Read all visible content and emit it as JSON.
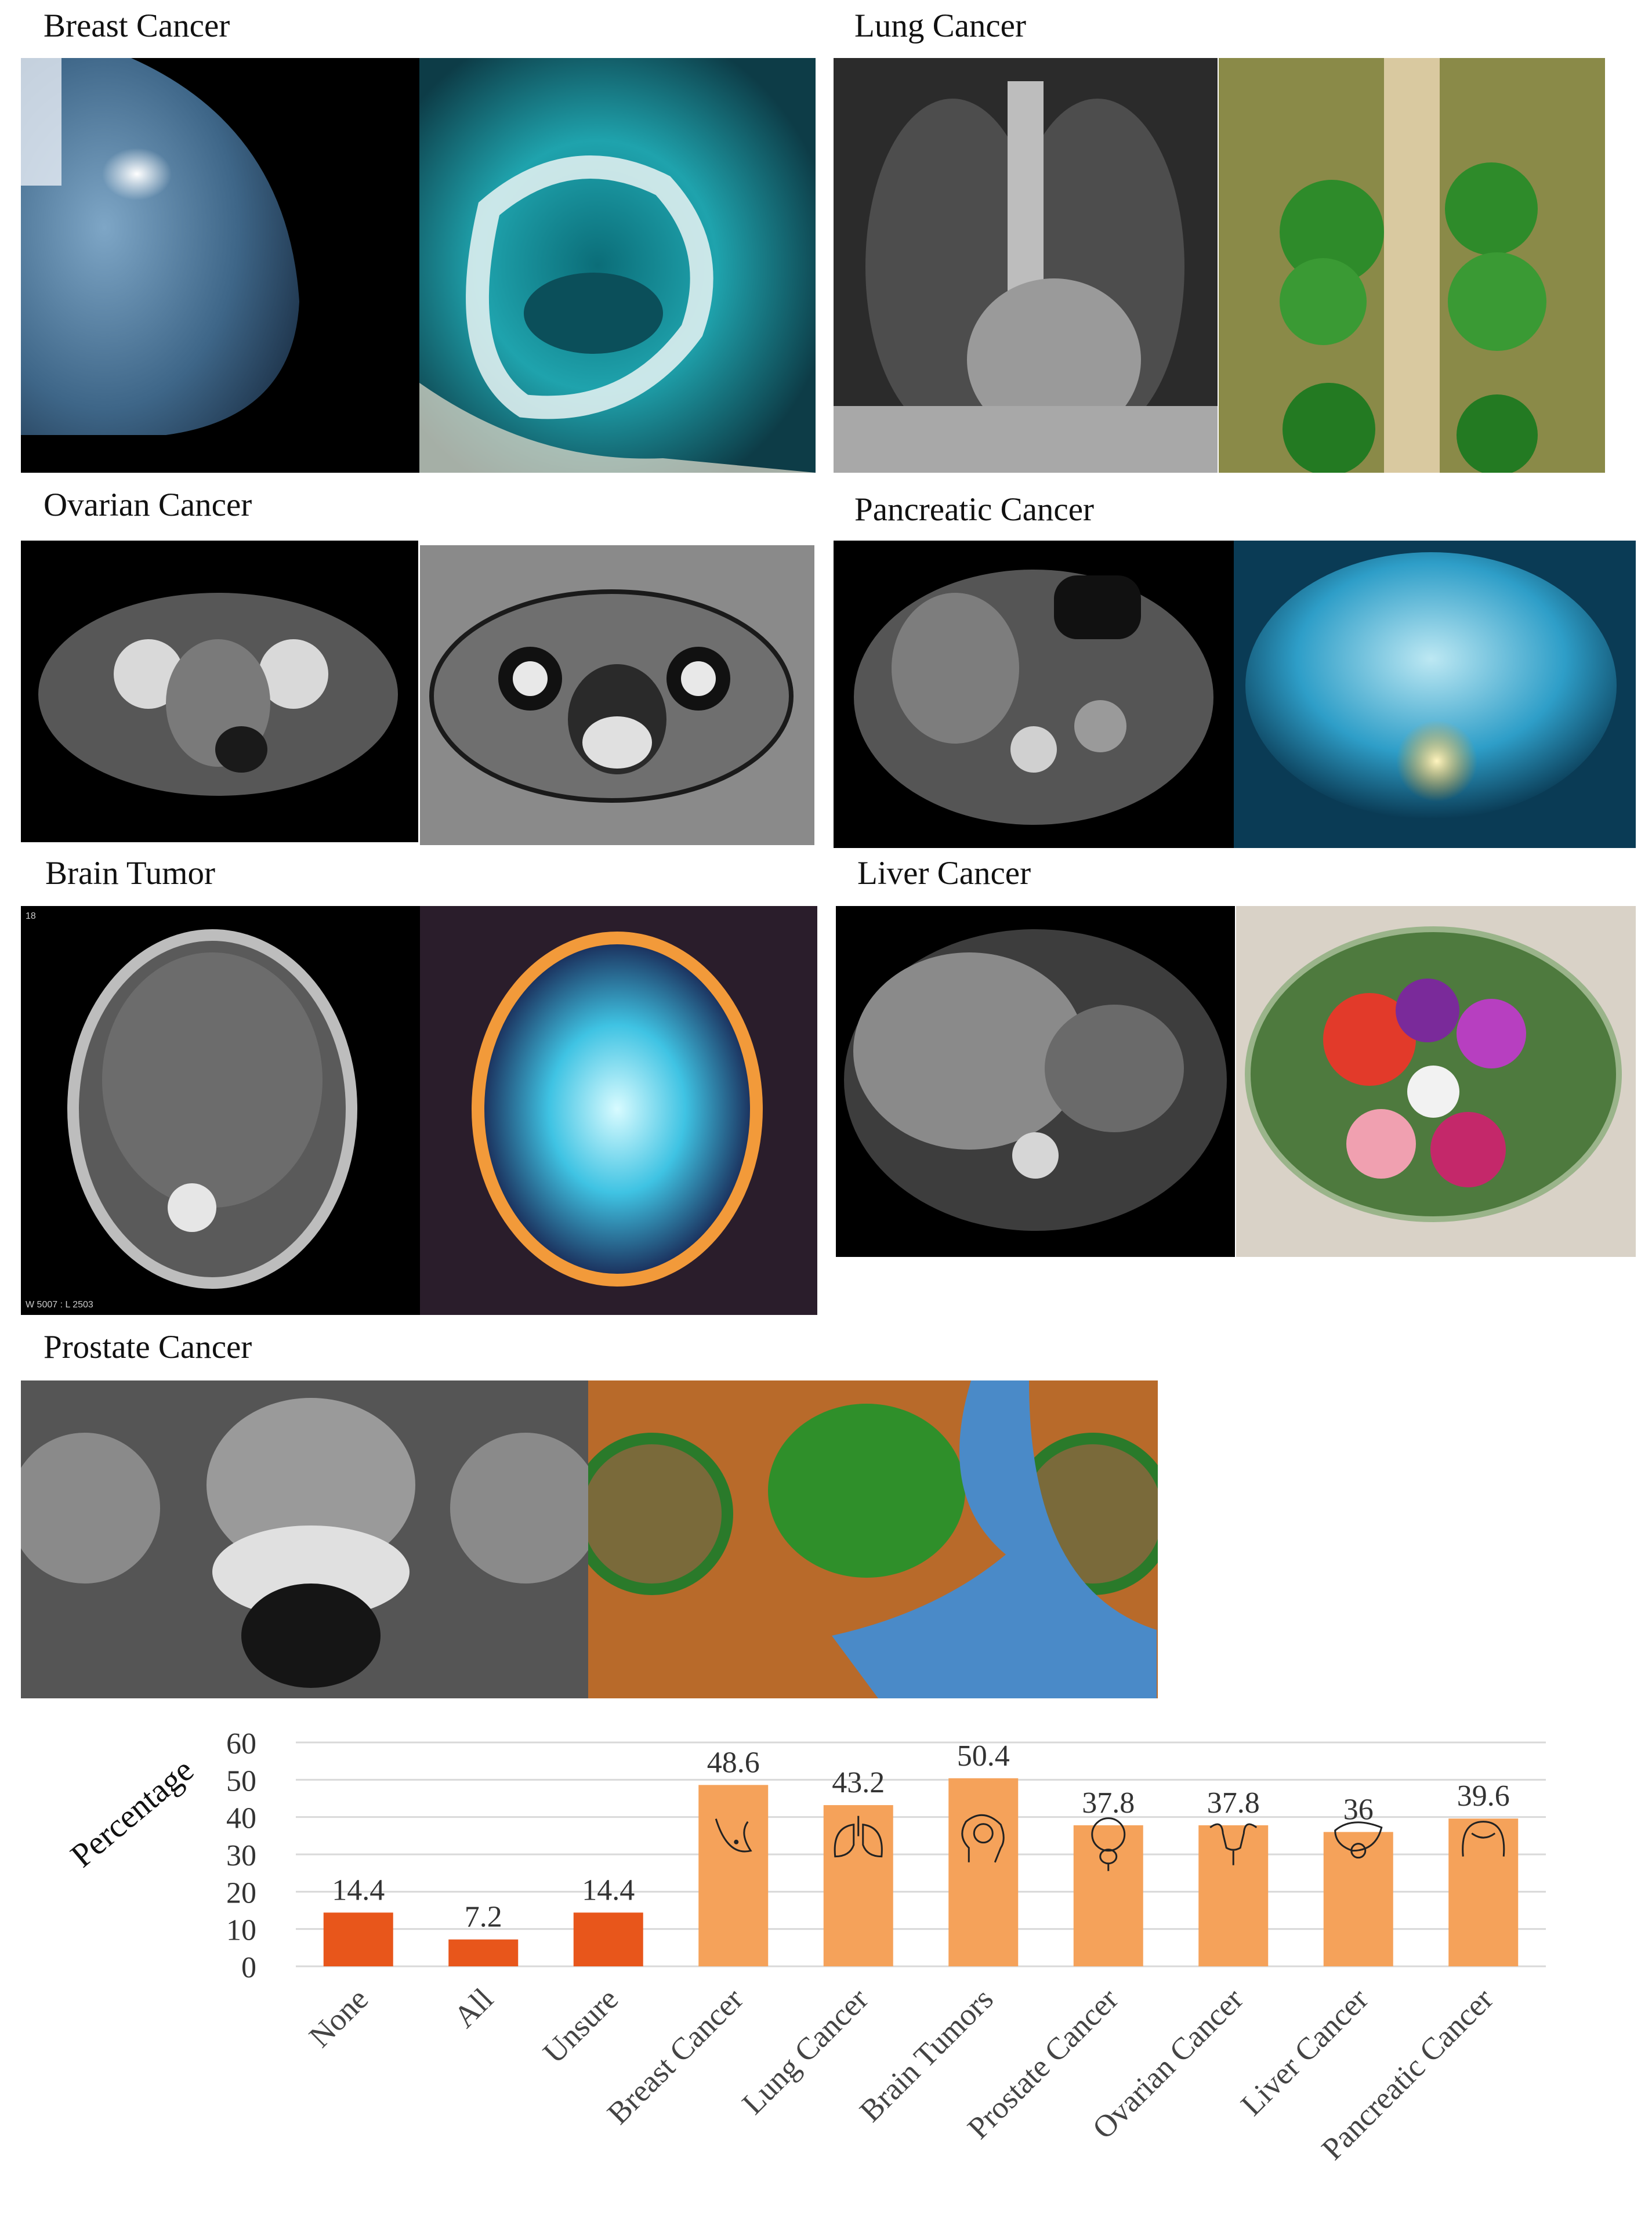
{
  "panels": [
    {
      "title": "Breast Cancer"
    },
    {
      "title": "Lung Cancer"
    },
    {
      "title": "Ovarian Cancer"
    },
    {
      "title": "Pancreatic Cancer"
    },
    {
      "title": "Brain Tumor",
      "scan_text_top": "18",
      "scan_text_bottom": "W 5007 : L 2503"
    },
    {
      "title": "Liver Cancer"
    },
    {
      "title": "Prostate Cancer"
    }
  ],
  "chart_data": {
    "type": "bar",
    "ylabel": "Percentage",
    "xlabel": "",
    "title": "",
    "ylim": [
      0,
      60
    ],
    "yticks": [
      0,
      10,
      20,
      30,
      40,
      50,
      60
    ],
    "grid": true,
    "categories": [
      "None",
      "All",
      "Unsure",
      "Breast Cancer",
      "Lung Cancer",
      "Brain Tumors",
      "Prostate Cancer",
      "Ovarian Cancer",
      "Liver Cancer",
      "Pancreatic Cancer"
    ],
    "values": [
      14.4,
      7.2,
      14.4,
      48.6,
      43.2,
      50.4,
      37.8,
      37.8,
      36,
      39.6
    ],
    "data_labels": [
      "14.4",
      "7.2",
      "14.4",
      "48.6",
      "43.2",
      "50.4",
      "37.8",
      "37.8",
      "36",
      "39.6"
    ],
    "bar_colors": [
      "#E8561B",
      "#E8561B",
      "#E8561B",
      "#F5A25A",
      "#F5A25A",
      "#F5A25A",
      "#F5A25A",
      "#F5A25A",
      "#F5A25A",
      "#F5A25A"
    ],
    "bar_icons": [
      "",
      "",
      "",
      "breast-icon",
      "lungs-icon",
      "brain-head-icon",
      "prostate-icon",
      "uterus-icon",
      "liver-icon",
      "pancreas-icon"
    ]
  }
}
